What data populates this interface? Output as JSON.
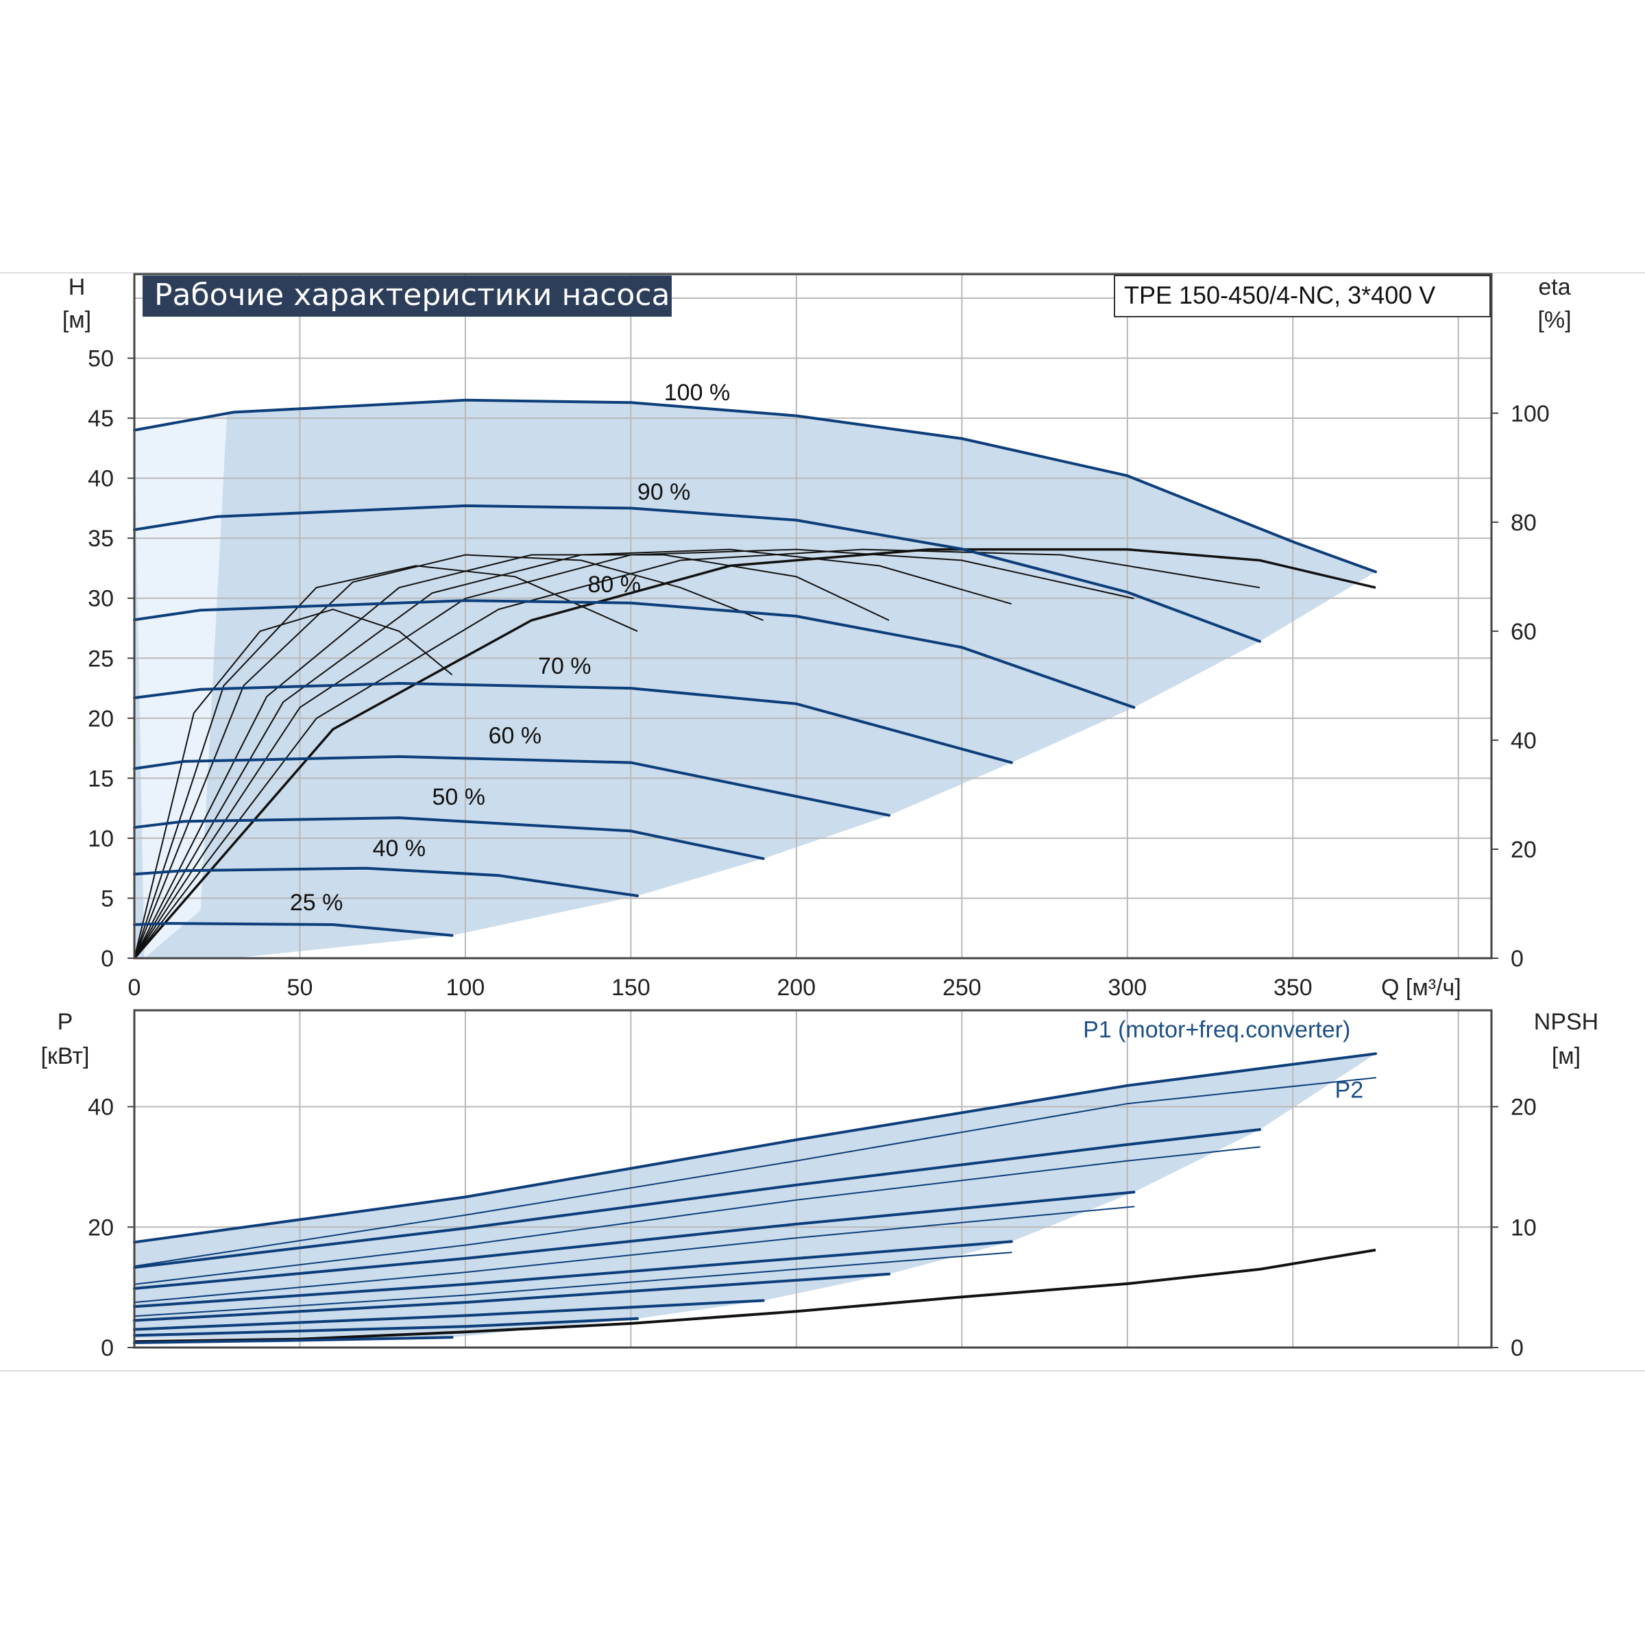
{
  "title": "Рабочие характеристики насоса",
  "model": "TPE 150-450/4-NC, 3*400 V",
  "colors": {
    "curve_blue": "#0d3e7a",
    "area_fill": "#cbdcec",
    "area_light": "#eaf3fb",
    "title_bg": "#2c3e5a",
    "grid": "#b9b9b9",
    "black": "#111111"
  },
  "top_axes": {
    "left_label": "H",
    "left_unit": "[м]",
    "right_label": "eta",
    "right_unit": "[%]",
    "x_label": "Q [м³/ч]",
    "x_ticks": [
      "0",
      "50",
      "100",
      "150",
      "200",
      "250",
      "300",
      "350"
    ],
    "y_ticks": [
      "0",
      "5",
      "10",
      "15",
      "20",
      "25",
      "30",
      "35",
      "40",
      "45",
      "50"
    ],
    "eta_ticks": [
      "0",
      "20",
      "40",
      "60",
      "80",
      "100"
    ]
  },
  "bottom_axes": {
    "left_label": "P",
    "left_unit": "[кВт]",
    "right_label": "NPSH",
    "right_unit": "[м]",
    "y_ticks": [
      "0",
      "20",
      "40"
    ],
    "npsh_ticks": [
      "0",
      "10",
      "20"
    ]
  },
  "chart_data": [
    {
      "type": "line",
      "name": "H-Q",
      "xlim": [
        0,
        410
      ],
      "ylim": [
        0,
        57
      ],
      "series": [
        {
          "name": "100 %",
          "x": [
            0,
            30,
            100,
            150,
            200,
            250,
            300,
            350,
            370,
            375
          ],
          "y": [
            44,
            45.5,
            46.5,
            46.3,
            45.2,
            43.3,
            40.2,
            34.7,
            32.7,
            32.2
          ]
        },
        {
          "name": "90 %",
          "x": [
            0,
            25,
            100,
            150,
            200,
            250,
            300,
            340
          ],
          "y": [
            35.7,
            36.8,
            37.7,
            37.5,
            36.5,
            34.1,
            30.5,
            26.4
          ]
        },
        {
          "name": "80 %",
          "x": [
            0,
            20,
            100,
            150,
            200,
            250,
            302
          ],
          "y": [
            28.2,
            29,
            29.8,
            29.6,
            28.5,
            25.9,
            20.9
          ]
        },
        {
          "name": "70 %",
          "x": [
            0,
            20,
            80,
            150,
            200,
            265
          ],
          "y": [
            21.7,
            22.4,
            22.9,
            22.5,
            21.2,
            16.3
          ]
        },
        {
          "name": "60 %",
          "x": [
            0,
            15,
            80,
            150,
            228
          ],
          "y": [
            15.8,
            16.4,
            16.8,
            16.3,
            11.9
          ]
        },
        {
          "name": "50 %",
          "x": [
            0,
            15,
            80,
            150,
            190
          ],
          "y": [
            10.9,
            11.4,
            11.7,
            10.6,
            8.3
          ]
        },
        {
          "name": "40 %",
          "x": [
            0,
            15,
            70,
            110,
            152
          ],
          "y": [
            7,
            7.3,
            7.5,
            6.9,
            5.2
          ]
        },
        {
          "name": "25 %",
          "x": [
            0,
            10,
            60,
            96
          ],
          "y": [
            2.8,
            2.9,
            2.8,
            1.9
          ]
        }
      ],
      "curve_labels": [
        {
          "text": "100 %",
          "x": 170,
          "y": 46.5
        },
        {
          "text": "90 %",
          "x": 160,
          "y": 38.2
        },
        {
          "text": "80 %",
          "x": 145,
          "y": 30.5
        },
        {
          "text": "70 %",
          "x": 130,
          "y": 23.7
        },
        {
          "text": "60 %",
          "x": 115,
          "y": 17.9
        },
        {
          "text": "50 %",
          "x": 98,
          "y": 12.8
        },
        {
          "text": "40 %",
          "x": 80,
          "y": 8.5
        },
        {
          "text": "25 %",
          "x": 55,
          "y": 4
        }
      ],
      "working_area": {
        "x": [
          0,
          30,
          100,
          150,
          200,
          250,
          300,
          350,
          370,
          375,
          340,
          302,
          265,
          228,
          190,
          152,
          96,
          30,
          0
        ],
        "y": [
          44,
          45.5,
          46.5,
          46.3,
          45.2,
          43.3,
          40.2,
          34.7,
          32.7,
          32.2,
          26.4,
          20.9,
          16.3,
          11.9,
          8.3,
          5.2,
          1.9,
          0,
          0
        ]
      },
      "light_wedge": {
        "x": [
          0,
          28,
          20,
          3
        ],
        "y": [
          44,
          45.5,
          4,
          0
        ]
      }
    },
    {
      "type": "line",
      "name": "eta",
      "xlim": [
        0,
        410
      ],
      "ylim": [
        0,
        100
      ],
      "y_axis": "right",
      "series": [
        {
          "name": "eta 100 %",
          "x": [
            0,
            60,
            120,
            180,
            240,
            300,
            340,
            375
          ],
          "y": [
            0,
            42,
            62,
            72,
            75,
            75,
            73,
            68
          ]
        },
        {
          "name": "eta 90 %",
          "x": [
            0,
            55,
            110,
            165,
            220,
            280,
            340
          ],
          "y": [
            0,
            44,
            64,
            73,
            75,
            74,
            68
          ]
        },
        {
          "name": "eta 80 %",
          "x": [
            0,
            50,
            100,
            150,
            200,
            250,
            302
          ],
          "y": [
            0,
            46,
            66,
            74,
            75,
            73,
            66
          ]
        },
        {
          "name": "eta 70 %",
          "x": [
            0,
            45,
            90,
            135,
            180,
            225,
            265
          ],
          "y": [
            0,
            47,
            67,
            74,
            75,
            72,
            65
          ]
        },
        {
          "name": "eta 60 %",
          "x": [
            0,
            40,
            80,
            120,
            160,
            200,
            228
          ],
          "y": [
            0,
            48,
            68,
            74,
            74,
            70,
            62
          ]
        },
        {
          "name": "eta 50 %",
          "x": [
            0,
            33,
            66,
            100,
            135,
            165,
            190
          ],
          "y": [
            0,
            50,
            69,
            74,
            73,
            68,
            62
          ]
        },
        {
          "name": "eta 40 %",
          "x": [
            0,
            27,
            55,
            85,
            115,
            152
          ],
          "y": [
            0,
            50,
            68,
            72,
            70,
            60
          ]
        },
        {
          "name": "eta 25 %",
          "x": [
            0,
            18,
            38,
            60,
            80,
            96
          ],
          "y": [
            0,
            45,
            60,
            64,
            60,
            52
          ]
        }
      ]
    },
    {
      "type": "line",
      "name": "P-Q",
      "xlim": [
        0,
        410
      ],
      "ylim": [
        0,
        56
      ],
      "series": [
        {
          "name": "P1 (motor+freq.converter)",
          "x": [
            0,
            100,
            200,
            300,
            375
          ],
          "y": [
            17.5,
            25,
            34.5,
            43.5,
            48.8
          ]
        },
        {
          "name": "P2",
          "x": [
            0,
            100,
            200,
            300,
            375
          ],
          "y": [
            13.5,
            22,
            31,
            40.5,
            44.8
          ]
        },
        {
          "name": "P1 90 %",
          "x": [
            0,
            100,
            200,
            300,
            340
          ],
          "y": [
            13.3,
            19.8,
            27,
            33.7,
            36.2
          ]
        },
        {
          "name": "P2 90 %",
          "x": [
            0,
            100,
            200,
            300,
            340
          ],
          "y": [
            10.5,
            17,
            24.5,
            31,
            33.3
          ]
        },
        {
          "name": "P1 80 %",
          "x": [
            0,
            100,
            200,
            302
          ],
          "y": [
            9.8,
            14.8,
            20.5,
            25.8
          ]
        },
        {
          "name": "P2 80 %",
          "x": [
            0,
            100,
            200,
            302
          ],
          "y": [
            7.5,
            12.5,
            18.2,
            23.4
          ]
        },
        {
          "name": "P1 70 %",
          "x": [
            0,
            100,
            200,
            265
          ],
          "y": [
            6.8,
            10.5,
            14.8,
            17.6
          ]
        },
        {
          "name": "P2 70 %",
          "x": [
            0,
            100,
            200,
            265
          ],
          "y": [
            5.2,
            8.7,
            13,
            15.8
          ]
        },
        {
          "name": "P1 60 %",
          "x": [
            0,
            100,
            228
          ],
          "y": [
            4.5,
            7.5,
            12.2
          ]
        },
        {
          "name": "P1 50 %",
          "x": [
            0,
            100,
            190
          ],
          "y": [
            3,
            5.3,
            7.8
          ]
        },
        {
          "name": "P1 40 %",
          "x": [
            0,
            100,
            152
          ],
          "y": [
            2,
            3.5,
            4.8
          ]
        },
        {
          "name": "P1 25 %",
          "x": [
            0,
            50,
            96
          ],
          "y": [
            0.8,
            1.2,
            1.7
          ]
        }
      ],
      "curve_labels": [
        {
          "text": "P1 (motor+freq.converter)",
          "x": 327,
          "y": 51.5
        },
        {
          "text": "P2",
          "x": 367,
          "y": 41.5
        }
      ],
      "area": {
        "x": [
          0,
          100,
          200,
          300,
          375,
          340,
          302,
          265,
          228,
          190,
          152,
          96,
          25,
          0
        ],
        "y": [
          17.5,
          25,
          34.5,
          43.5,
          48.8,
          36.2,
          25.8,
          17.6,
          12.2,
          7.8,
          4.8,
          1.7,
          1.5,
          1.5
        ]
      }
    },
    {
      "type": "line",
      "name": "NPSH",
      "xlim": [
        0,
        410
      ],
      "ylim": [
        0,
        28
      ],
      "y_axis": "right",
      "series": [
        {
          "name": "NPSH",
          "x": [
            0,
            50,
            100,
            150,
            200,
            250,
            300,
            340,
            375
          ],
          "y": [
            0.5,
            0.7,
            1.3,
            2,
            3,
            4.2,
            5.3,
            6.5,
            8.1
          ]
        }
      ]
    }
  ]
}
